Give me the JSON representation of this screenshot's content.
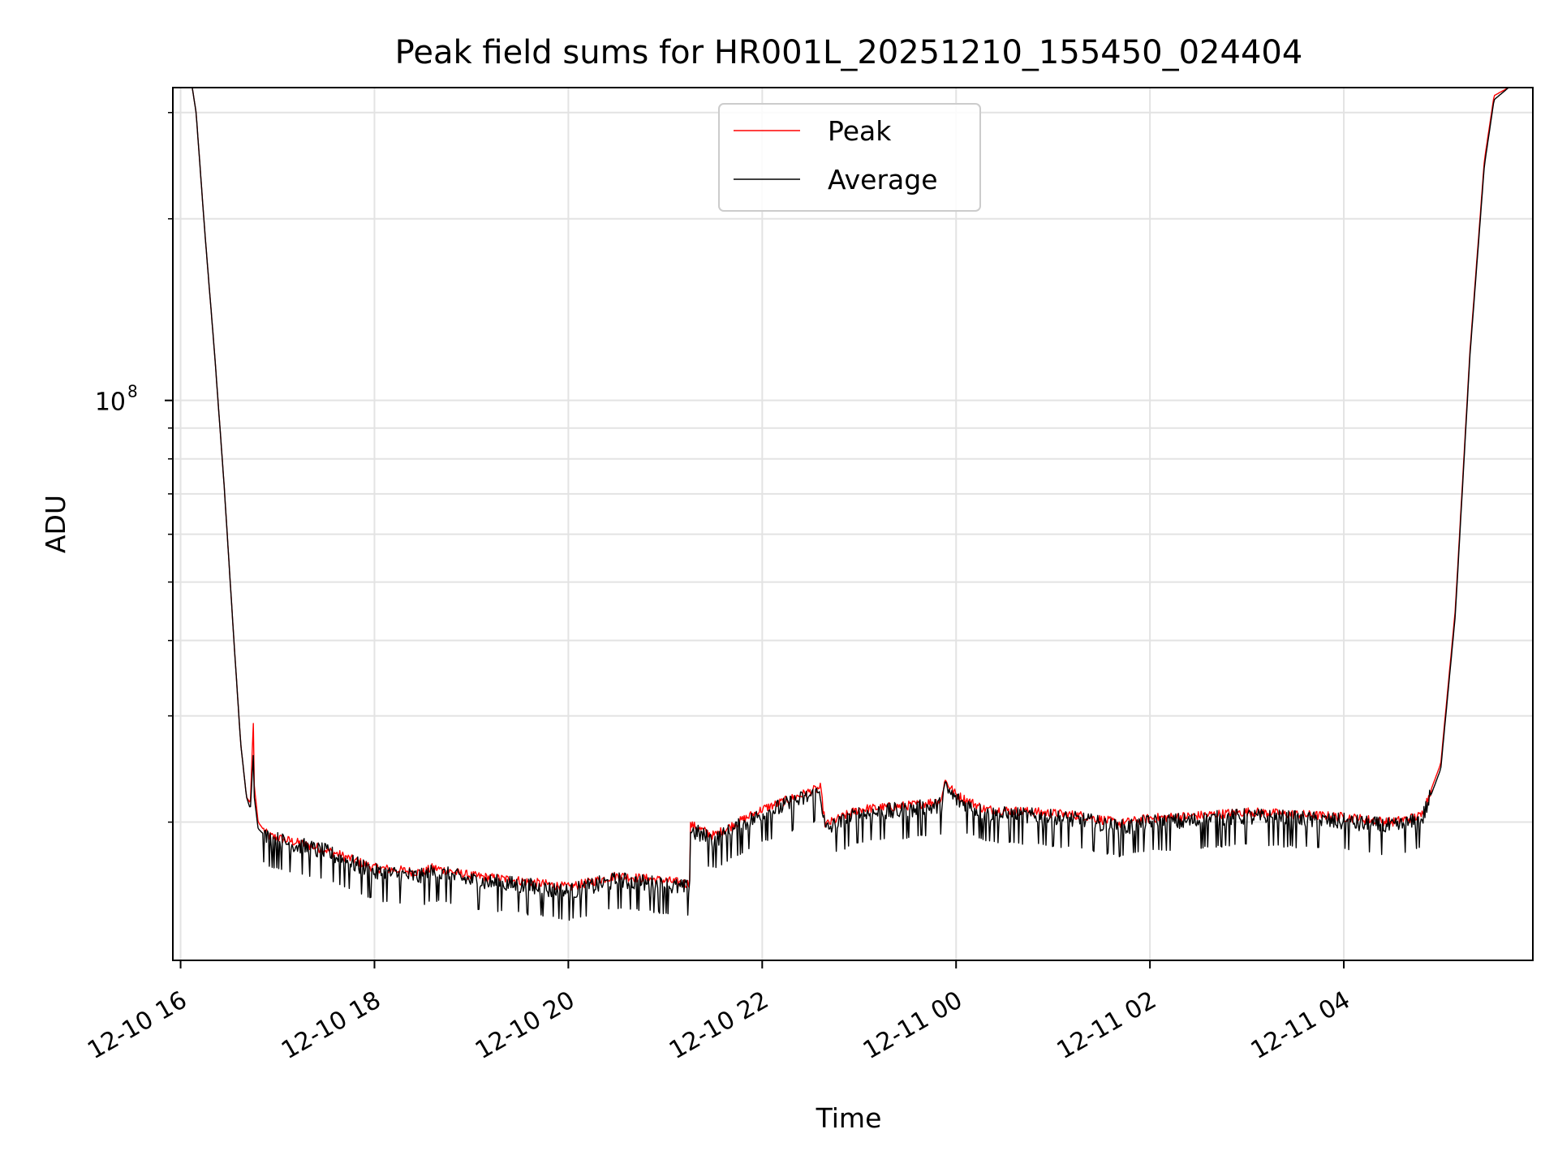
{
  "chart_data": {
    "type": "line",
    "title": "Peak field sums for HR001L_20251210_155450_024404",
    "xlabel": "Time",
    "ylabel": "ADU",
    "yscale": "log",
    "xlim_hours": [
      -0.08,
      13.95
    ],
    "ylim": [
      11800000,
      330000000
    ],
    "x_unit": "hours since 2025-12-10 16:00",
    "x_ticks": [
      {
        "value": 0,
        "label": "12-10 16"
      },
      {
        "value": 2,
        "label": "12-10 18"
      },
      {
        "value": 4,
        "label": "12-10 20"
      },
      {
        "value": 6,
        "label": "12-10 22"
      },
      {
        "value": 8,
        "label": "12-11 00"
      },
      {
        "value": 10,
        "label": "12-11 02"
      },
      {
        "value": 12,
        "label": "12-11 04"
      }
    ],
    "y_major_ticks": [
      {
        "value": 100000000,
        "label": "10",
        "exponent": "8"
      }
    ],
    "y_minor_ticks": [
      20000000,
      30000000,
      40000000,
      50000000,
      60000000,
      70000000,
      80000000,
      90000000,
      200000000,
      300000000
    ],
    "grid": true,
    "legend_position": "upper center",
    "series": [
      {
        "name": "Peak",
        "color": "#ff0000",
        "anchors": [
          [
            0.12,
            330000000
          ],
          [
            0.16,
            300000000
          ],
          [
            0.25,
            190000000
          ],
          [
            0.35,
            120000000
          ],
          [
            0.45,
            72000000
          ],
          [
            0.55,
            40000000
          ],
          [
            0.62,
            27000000
          ],
          [
            0.68,
            22000000
          ],
          [
            0.72,
            21500000
          ],
          [
            0.75,
            29500000
          ],
          [
            0.76,
            23000000
          ],
          [
            0.8,
            20000000
          ],
          [
            0.9,
            19000000
          ],
          [
            1.2,
            18500000
          ],
          [
            1.5,
            18000000
          ],
          [
            2.0,
            16800000
          ],
          [
            2.5,
            16500000
          ],
          [
            2.6,
            16800000
          ],
          [
            3.0,
            16300000
          ],
          [
            3.5,
            16000000
          ],
          [
            4.0,
            15600000
          ],
          [
            4.5,
            16300000
          ],
          [
            5.0,
            16000000
          ],
          [
            5.25,
            15800000
          ],
          [
            5.26,
            19800000
          ],
          [
            5.5,
            19000000
          ],
          [
            6.0,
            21000000
          ],
          [
            6.6,
            22800000
          ],
          [
            6.65,
            19800000
          ],
          [
            7.0,
            21000000
          ],
          [
            7.5,
            21300000
          ],
          [
            7.85,
            21700000
          ],
          [
            7.88,
            23500000
          ],
          [
            8.0,
            22200000
          ],
          [
            8.3,
            21000000
          ],
          [
            8.8,
            20800000
          ],
          [
            9.3,
            20500000
          ],
          [
            9.7,
            19900000
          ],
          [
            10.0,
            20300000
          ],
          [
            10.5,
            20500000
          ],
          [
            11.0,
            20800000
          ],
          [
            11.5,
            20600000
          ],
          [
            12.0,
            20400000
          ],
          [
            12.5,
            20000000
          ],
          [
            12.8,
            20500000
          ],
          [
            13.0,
            25000000
          ],
          [
            13.15,
            45000000
          ],
          [
            13.3,
            120000000
          ],
          [
            13.45,
            250000000
          ],
          [
            13.55,
            320000000
          ],
          [
            13.7,
            330000000
          ]
        ]
      },
      {
        "name": "Average",
        "color": "#000000",
        "anchors": [
          [
            0.12,
            330000000
          ],
          [
            0.16,
            300000000
          ],
          [
            0.25,
            190000000
          ],
          [
            0.35,
            120000000
          ],
          [
            0.45,
            72000000
          ],
          [
            0.55,
            40000000
          ],
          [
            0.62,
            27000000
          ],
          [
            0.68,
            22000000
          ],
          [
            0.72,
            21000000
          ],
          [
            0.75,
            26000000
          ],
          [
            0.76,
            22000000
          ],
          [
            0.8,
            19500000
          ],
          [
            0.9,
            18800000
          ],
          [
            1.2,
            18300000
          ],
          [
            1.5,
            17800000
          ],
          [
            2.0,
            16500000
          ],
          [
            2.5,
            16200000
          ],
          [
            2.6,
            16500000
          ],
          [
            3.0,
            16000000
          ],
          [
            3.5,
            15700000
          ],
          [
            4.0,
            15300000
          ],
          [
            4.5,
            16000000
          ],
          [
            5.0,
            15700000
          ],
          [
            5.25,
            15500000
          ],
          [
            5.26,
            19400000
          ],
          [
            5.5,
            18600000
          ],
          [
            6.0,
            20600000
          ],
          [
            6.6,
            22400000
          ],
          [
            6.65,
            19400000
          ],
          [
            7.0,
            20600000
          ],
          [
            7.5,
            20900000
          ],
          [
            7.85,
            21300000
          ],
          [
            7.88,
            22800000
          ],
          [
            8.0,
            21800000
          ],
          [
            8.3,
            20600000
          ],
          [
            8.8,
            20400000
          ],
          [
            9.3,
            20100000
          ],
          [
            9.7,
            19500000
          ],
          [
            10.0,
            19900000
          ],
          [
            10.5,
            20100000
          ],
          [
            11.0,
            20400000
          ],
          [
            11.5,
            20200000
          ],
          [
            12.0,
            20000000
          ],
          [
            12.5,
            19600000
          ],
          [
            12.8,
            20100000
          ],
          [
            13.0,
            24500000
          ],
          [
            13.15,
            44000000
          ],
          [
            13.3,
            118000000
          ],
          [
            13.45,
            245000000
          ],
          [
            13.55,
            315000000
          ],
          [
            13.7,
            330000000
          ]
        ],
        "noise": true
      }
    ]
  }
}
